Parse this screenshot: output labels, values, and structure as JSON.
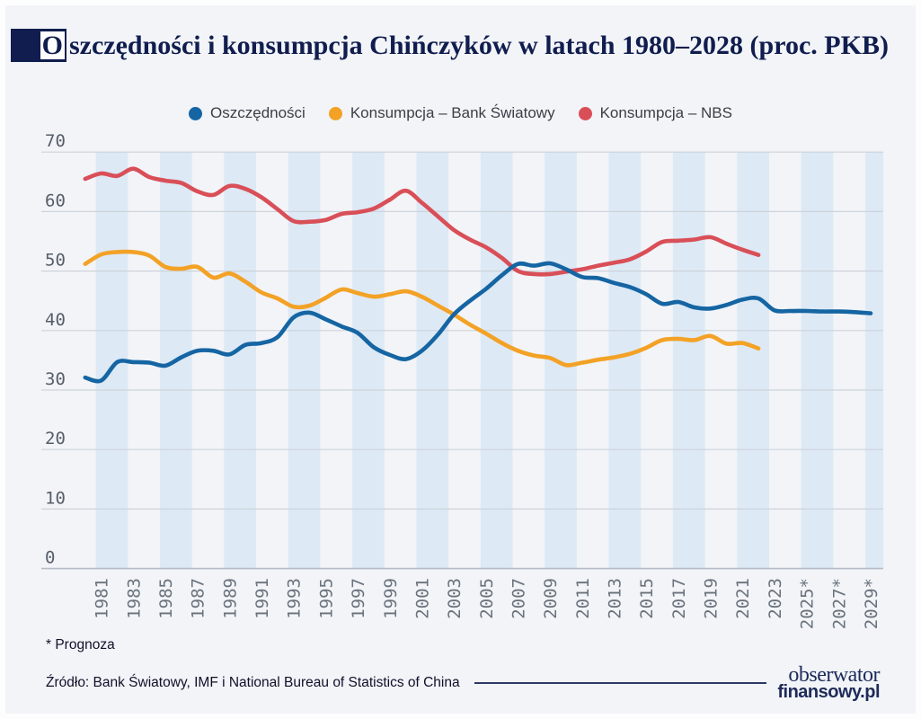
{
  "title": {
    "text": "Oszczędności i konsumpcja Chińczyków w latach 1980–2028 (proc. PKB)"
  },
  "footnote": "* Prognoza",
  "source": "Źródło: Bank Światowy, IMF i National Bureau of Statistics of China",
  "logo": {
    "line1": "obserwator",
    "line2": "finansowy.pl"
  },
  "colors": {
    "accent_navy": "#101d4e",
    "savings_blue": "#1565a3",
    "consumption_wb_orange": "#f3a226",
    "consumption_nbs_red": "#d94f58",
    "band_blue": "#dde9f5",
    "background": "#f2f4f8",
    "gridline": "#cdd3db"
  },
  "chart_data": {
    "type": "line",
    "title": "Oszczędności i konsumpcja Chińczyków w latach 1980–2028 (proc. PKB)",
    "ylabel": "proc. PKB",
    "xlabel": "",
    "ylim": [
      0,
      70
    ],
    "yticks": [
      0,
      10,
      20,
      30,
      40,
      50,
      60,
      70
    ],
    "grid": true,
    "legend_position": "top",
    "xlim": [
      1980,
      2030
    ],
    "x_tick_labels": [
      "1981",
      "1983",
      "1985",
      "1987",
      "1989",
      "1991",
      "1993",
      "1995",
      "1997",
      "1999",
      "2001",
      "2003",
      "2005",
      "2007",
      "2009",
      "2011",
      "2013",
      "2015",
      "2017",
      "2019",
      "2021",
      "2023",
      "2025*",
      "2027*",
      "2029*"
    ],
    "forecast_marker": "*",
    "background_bands": {
      "first_year": 1981,
      "band_width_years": 2,
      "period_years": 4
    },
    "series": [
      {
        "name": "Oszczędności",
        "color": "#1565a3",
        "x": [
          1980,
          1981,
          1982,
          1983,
          1984,
          1985,
          1986,
          1987,
          1988,
          1989,
          1990,
          1991,
          1992,
          1993,
          1994,
          1995,
          1996,
          1997,
          1998,
          1999,
          2000,
          2001,
          2002,
          2003,
          2004,
          2005,
          2006,
          2007,
          2008,
          2009,
          2010,
          2011,
          2012,
          2013,
          2014,
          2015,
          2016,
          2017,
          2018,
          2019,
          2020,
          2021,
          2022,
          2023,
          2024,
          2025,
          2026,
          2027,
          2028,
          2029
        ],
        "values": [
          32.1,
          31.6,
          34.7,
          34.7,
          34.6,
          34.1,
          35.5,
          36.6,
          36.6,
          36.0,
          37.6,
          37.9,
          38.9,
          42.2,
          43.0,
          41.9,
          40.7,
          39.6,
          37.2,
          35.9,
          35.2,
          36.6,
          39.3,
          42.7,
          45.0,
          47.0,
          49.3,
          51.2,
          50.9,
          51.3,
          50.3,
          49.0,
          48.8,
          48.0,
          47.3,
          46.1,
          44.5,
          44.8,
          43.9,
          43.7,
          44.3,
          45.2,
          45.4,
          43.4,
          43.3,
          43.3,
          43.2,
          43.2,
          43.1,
          42.9
        ]
      },
      {
        "name": "Konsumpcja – Bank Światowy",
        "color": "#f3a226",
        "x": [
          1980,
          1981,
          1982,
          1983,
          1984,
          1985,
          1986,
          1987,
          1988,
          1989,
          1990,
          1991,
          1992,
          1993,
          1994,
          1995,
          1996,
          1997,
          1998,
          1999,
          2000,
          2001,
          2002,
          2003,
          2004,
          2005,
          2006,
          2007,
          2008,
          2009,
          2010,
          2011,
          2012,
          2013,
          2014,
          2015,
          2016,
          2017,
          2018,
          2019,
          2020,
          2021,
          2022
        ],
        "values": [
          51.2,
          52.8,
          53.2,
          53.2,
          52.6,
          50.7,
          50.4,
          50.7,
          48.9,
          49.6,
          48.2,
          46.4,
          45.4,
          44.0,
          44.2,
          45.5,
          46.9,
          46.3,
          45.7,
          46.1,
          46.6,
          45.7,
          44.2,
          42.7,
          41.0,
          39.5,
          37.9,
          36.6,
          35.8,
          35.4,
          34.2,
          34.6,
          35.1,
          35.5,
          36.1,
          37.1,
          38.4,
          38.6,
          38.4,
          39.1,
          37.8,
          37.9,
          37.0
        ]
      },
      {
        "name": "Konsumpcja – NBS",
        "color": "#d94f58",
        "x": [
          1980,
          1981,
          1982,
          1983,
          1984,
          1985,
          1986,
          1987,
          1988,
          1989,
          1990,
          1991,
          1992,
          1993,
          1994,
          1995,
          1996,
          1997,
          1998,
          1999,
          2000,
          2001,
          2002,
          2003,
          2004,
          2005,
          2006,
          2007,
          2008,
          2009,
          2010,
          2011,
          2012,
          2013,
          2014,
          2015,
          2016,
          2017,
          2018,
          2019,
          2020,
          2021,
          2022
        ],
        "values": [
          65.5,
          66.4,
          66.0,
          67.2,
          65.8,
          65.2,
          64.8,
          63.4,
          62.8,
          64.3,
          63.8,
          62.4,
          60.4,
          58.4,
          58.3,
          58.6,
          59.6,
          59.9,
          60.5,
          62.0,
          63.5,
          61.5,
          59.2,
          56.9,
          55.3,
          54.0,
          52.2,
          50.0,
          49.5,
          49.5,
          49.9,
          50.3,
          50.9,
          51.4,
          52.0,
          53.3,
          54.9,
          55.1,
          55.3,
          55.7,
          54.6,
          53.6,
          52.7
        ]
      }
    ]
  }
}
